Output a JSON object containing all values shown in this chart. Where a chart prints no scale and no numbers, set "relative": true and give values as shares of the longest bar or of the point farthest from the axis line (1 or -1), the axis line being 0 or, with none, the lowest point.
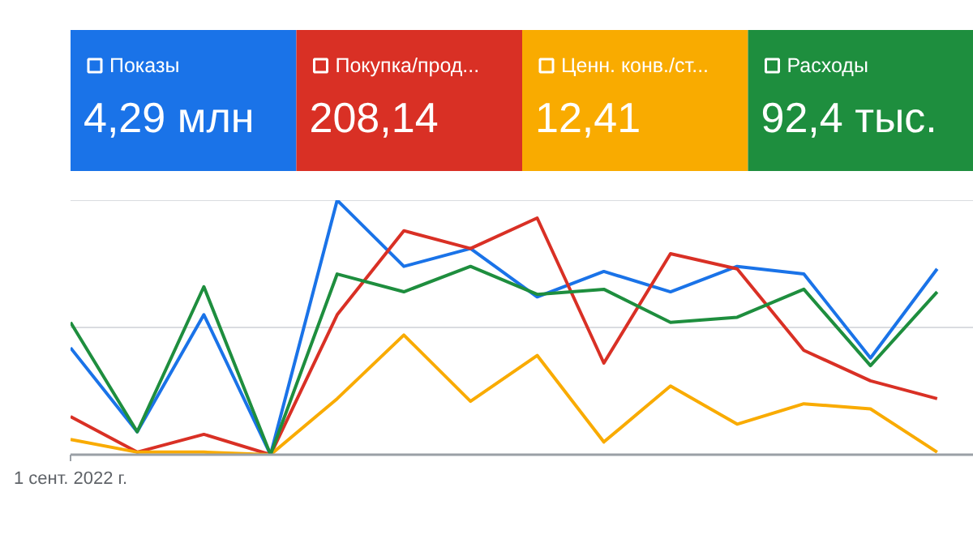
{
  "chart_data": {
    "type": "line",
    "relative": true,
    "legend": "top",
    "categories": [
      null,
      null,
      null,
      null,
      null,
      null,
      null,
      null,
      null,
      null,
      null,
      null,
      null,
      null
    ],
    "annotations": [
      "4,29 млн",
      "208,14",
      "12,41",
      "92,4 тыс.",
      "1 сент. 2022 г."
    ],
    "ref_lines": [
      {
        "axis": "y",
        "value": 0.5,
        "color": "#dadce0"
      },
      {
        "axis": "y",
        "value": 1,
        "color": "#dadce0"
      }
    ],
    "series": [
      {
        "name": "Показы",
        "color": "#1a73e8",
        "values": [
          0.42,
          0.09,
          0.55,
          0,
          1,
          0.74,
          0.81,
          0.62,
          0.72,
          0.64,
          0.74,
          0.71,
          0.38,
          0.73
        ]
      },
      {
        "name": "Покупка/прод...",
        "color": "#d93025",
        "values": [
          0.15,
          0.01,
          0.08,
          0,
          0.55,
          0.88,
          0.81,
          0.93,
          0.36,
          0.79,
          0.73,
          0.41,
          0.29,
          0.22
        ]
      },
      {
        "name": "Ценн. конв./ст...",
        "color": "#f9ab00",
        "values": [
          0.06,
          0.01,
          0.01,
          0,
          0.22,
          0.47,
          0.21,
          0.39,
          0.05,
          0.27,
          0.12,
          0.2,
          0.18,
          0.01
        ]
      },
      {
        "name": "Расходы",
        "color": "#1e8e3e",
        "values": [
          0.52,
          0.09,
          0.66,
          0,
          0.71,
          0.64,
          0.74,
          0.63,
          0.65,
          0.52,
          0.54,
          0.65,
          0.35,
          0.64
        ]
      }
    ]
  }
}
